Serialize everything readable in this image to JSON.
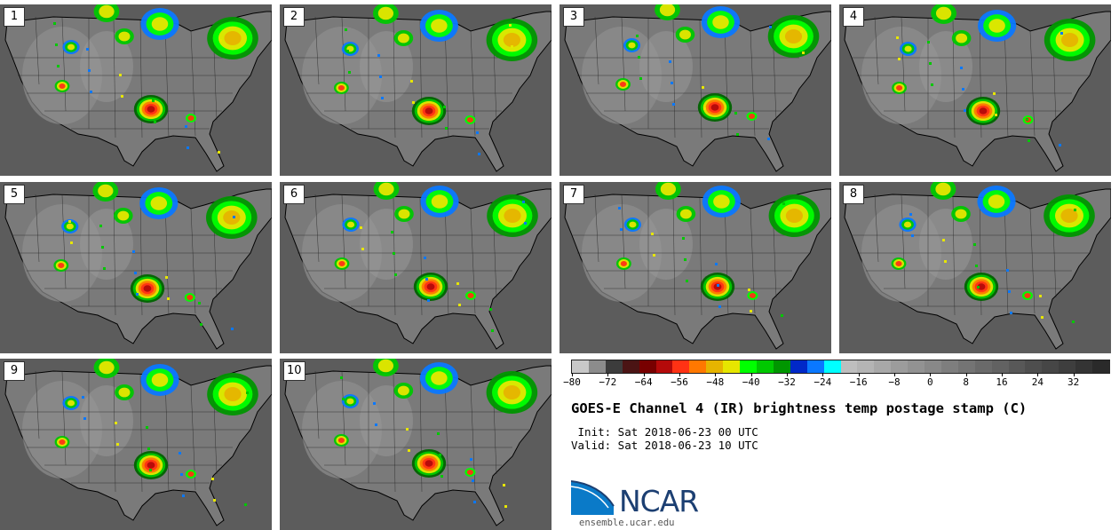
{
  "panels": [
    {
      "label": "1"
    },
    {
      "label": "2"
    },
    {
      "label": "3"
    },
    {
      "label": "4"
    },
    {
      "label": "5"
    },
    {
      "label": "6"
    },
    {
      "label": "7"
    },
    {
      "label": "8"
    },
    {
      "label": "9"
    },
    {
      "label": "10"
    }
  ],
  "colorbar": {
    "colors": [
      "#c8c8c8",
      "#8c8c8c",
      "#3c3c3c",
      "#4b1414",
      "#780000",
      "#b40a0a",
      "#ff3214",
      "#ff7800",
      "#e6b400",
      "#e6e600",
      "#00ff00",
      "#00c800",
      "#009600",
      "#0028c8",
      "#0a78ff",
      "#00ffff",
      "#bebebe",
      "#b4b4b4",
      "#a8a8a8",
      "#9c9c9c",
      "#929292",
      "#888888",
      "#7e7e7e",
      "#747474",
      "#6a6a6a",
      "#626262",
      "#585858",
      "#4e4e4e",
      "#464646",
      "#3e3e3e",
      "#343434",
      "#2a2a2a"
    ],
    "tick_labels": [
      "−80",
      "−72",
      "−64",
      "−56",
      "−48",
      "−40",
      "−32",
      "−24",
      "−16",
      "−8",
      "0",
      "8",
      "16",
      "24",
      "32"
    ],
    "tick_values": [
      -80,
      -72,
      -64,
      -56,
      -48,
      -40,
      -32,
      -24,
      -16,
      -8,
      0,
      8,
      16,
      24,
      32
    ],
    "range": [
      -80,
      40
    ]
  },
  "title": "GOES-E Channel 4 (IR) brightness temp postage stamp (C)",
  "init": " Init: Sat 2018-06-23 00 UTC",
  "valid": "Valid: Sat 2018-06-23 10 UTC",
  "logo_text": "NCAR",
  "site": "ensemble.ucar.edu"
}
